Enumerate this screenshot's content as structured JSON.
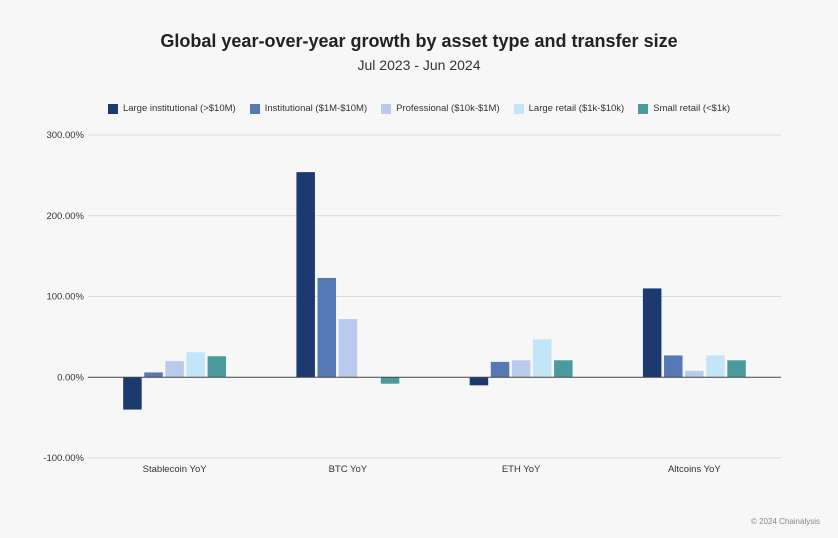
{
  "colors": [
    "#1d3a70",
    "#5679b6",
    "#b8cbed",
    "#c2e5f7",
    "#4a9a9e"
  ],
  "chart_data": {
    "type": "bar",
    "title": "Global year-over-year growth by asset type and transfer size",
    "subtitle": "Jul 2023 - Jun 2024",
    "categories": [
      "Stablecoin YoY",
      "BTC YoY",
      "ETH YoY",
      "Altcoins YoY"
    ],
    "series": [
      {
        "name": "Large institutional (>$10M)",
        "values": [
          -40,
          254,
          -10,
          110
        ]
      },
      {
        "name": "Institutional ($1M-$10M)",
        "values": [
          6,
          123,
          19,
          27
        ]
      },
      {
        "name": "Professional ($10k-$1M)",
        "values": [
          20,
          72,
          21,
          8
        ]
      },
      {
        "name": "Large retail ($1k-$10k)",
        "values": [
          31,
          0,
          47,
          27
        ]
      },
      {
        "name": "Small retail (<$1k)",
        "values": [
          26,
          -8,
          21,
          21
        ]
      }
    ],
    "yticks": [
      300,
      200,
      100,
      0,
      -100
    ],
    "ytick_labels": [
      "300.00%",
      "200.00%",
      "100.00%",
      "0.00%",
      "-100.00%"
    ],
    "ylim": [
      -100,
      300
    ],
    "grid": true,
    "legend_position": "top"
  },
  "footer": "© 2024 Chainalysis"
}
